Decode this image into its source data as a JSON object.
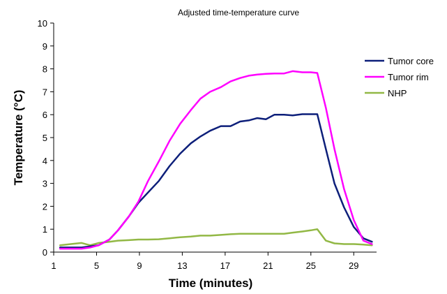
{
  "chart_data": {
    "type": "line",
    "title": "Adjusted time-temperature curve",
    "xlabel": "Time (minutes)",
    "ylabel": "Temperature (°C)",
    "xlim": [
      1,
      31
    ],
    "ylim": [
      0,
      10
    ],
    "xticks": [
      1,
      5,
      9,
      13,
      17,
      21,
      25,
      29
    ],
    "xtick_labels": [
      "1",
      "5",
      "9",
      "13",
      "17",
      "21",
      "25",
      "29"
    ],
    "yticks": [
      0,
      1,
      2,
      3,
      4,
      5,
      6,
      7,
      8,
      9,
      10
    ],
    "ytick_labels": [
      "0",
      "1",
      "2",
      "3",
      "4",
      "5",
      "6",
      "7",
      "8",
      "9",
      "10"
    ],
    "legend_position": "right",
    "x": [
      1.6,
      2.6,
      3.6,
      4.4,
      5.2,
      6.2,
      7,
      8,
      8.9,
      9.8,
      10.8,
      11.8,
      12.8,
      13.8,
      14.7,
      15.6,
      16.6,
      17.5,
      18.4,
      19.2,
      20,
      20.8,
      21.6,
      22.5,
      23.3,
      24.2,
      25,
      25.6,
      26.4,
      27.2,
      28.1,
      29,
      29.9,
      30.7
    ],
    "series": [
      {
        "name": "Tumor core",
        "color": "#0d1f7a",
        "values": [
          0.2,
          0.2,
          0.2,
          0.25,
          0.3,
          0.55,
          0.95,
          1.55,
          2.15,
          2.6,
          3.1,
          3.75,
          4.3,
          4.75,
          5.05,
          5.3,
          5.5,
          5.5,
          5.7,
          5.75,
          5.85,
          5.8,
          6.0,
          6.0,
          5.97,
          6.02,
          6.02,
          6.02,
          4.5,
          3.0,
          1.95,
          1.1,
          0.6,
          0.45
        ]
      },
      {
        "name": "Tumor rim",
        "color": "#ff00ff",
        "values": [
          0.15,
          0.15,
          0.15,
          0.2,
          0.3,
          0.55,
          0.95,
          1.55,
          2.2,
          3.1,
          3.95,
          4.85,
          5.6,
          6.2,
          6.7,
          7.0,
          7.2,
          7.45,
          7.6,
          7.7,
          7.75,
          7.78,
          7.8,
          7.8,
          7.9,
          7.85,
          7.85,
          7.82,
          6.3,
          4.5,
          2.75,
          1.4,
          0.5,
          0.35
        ]
      },
      {
        "name": "NHP",
        "color": "#92b845",
        "values": [
          0.3,
          0.35,
          0.4,
          0.3,
          0.4,
          0.45,
          0.5,
          0.52,
          0.55,
          0.55,
          0.56,
          0.6,
          0.65,
          0.68,
          0.72,
          0.72,
          0.75,
          0.78,
          0.8,
          0.8,
          0.8,
          0.8,
          0.8,
          0.8,
          0.85,
          0.9,
          0.95,
          1.0,
          0.5,
          0.38,
          0.35,
          0.35,
          0.33,
          0.3
        ]
      }
    ]
  }
}
